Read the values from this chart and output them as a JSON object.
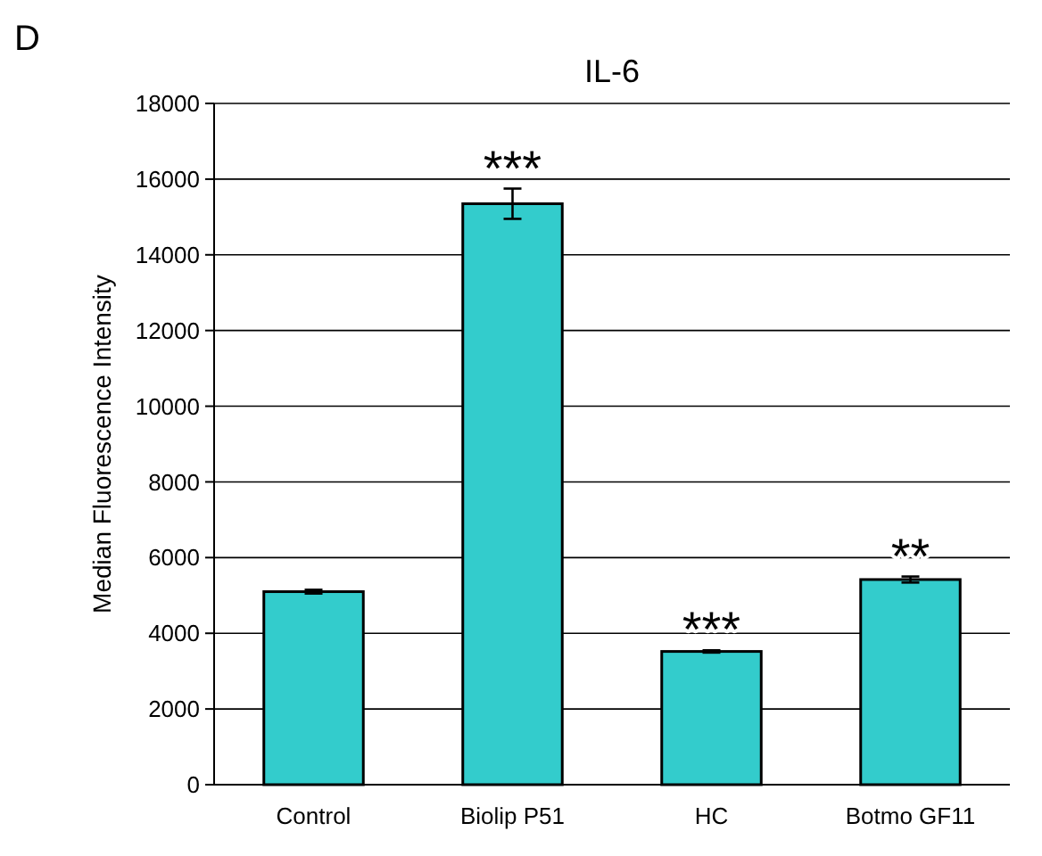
{
  "chart_data": {
    "type": "bar",
    "title": "IL-6",
    "ylabel": "Median Fluorescence Intensity",
    "categories": [
      "Control",
      "Biolip P51",
      "HC",
      "Botmo GF11"
    ],
    "values": [
      5100,
      15350,
      3520,
      5420
    ],
    "errors": [
      50,
      400,
      30,
      80
    ],
    "color": "#33cccc",
    "ylim": [
      0,
      18000
    ],
    "yticks": [
      0,
      2000,
      4000,
      6000,
      8000,
      10000,
      12000,
      14000,
      16000,
      18000
    ],
    "grid": "y",
    "annotations": [
      "D",
      {
        "text": "***",
        "x": "Biolip P51",
        "y": 15750
      },
      {
        "text": "***",
        "x": "HC",
        "y": 3550
      },
      {
        "text": "**",
        "x": "Botmo GF11",
        "y": 5500
      }
    ]
  }
}
